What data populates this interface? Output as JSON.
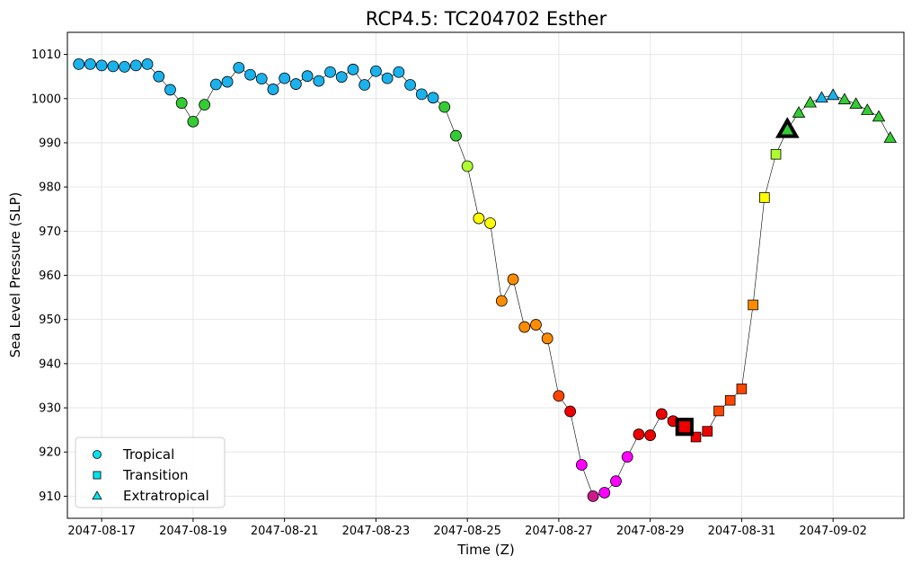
{
  "chart_data": {
    "type": "scatter",
    "title": "RCP4.5: TC204702 Esther",
    "xlabel": "Time (Z)",
    "ylabel": "Sea Level Pressure (SLP)",
    "ylim": [
      905,
      1015
    ],
    "xlim_day": [
      -0.75,
      17.55
    ],
    "yticks": [
      910,
      920,
      930,
      940,
      950,
      960,
      970,
      980,
      990,
      1000,
      1010
    ],
    "xticks": [
      {
        "day": 0,
        "label": "2047-08-17"
      },
      {
        "day": 2,
        "label": "2047-08-19"
      },
      {
        "day": 4,
        "label": "2047-08-21"
      },
      {
        "day": 6,
        "label": "2047-08-23"
      },
      {
        "day": 8,
        "label": "2047-08-25"
      },
      {
        "day": 10,
        "label": "2047-08-27"
      },
      {
        "day": 12,
        "label": "2047-08-29"
      },
      {
        "day": 14,
        "label": "2047-08-31"
      },
      {
        "day": 16,
        "label": "2047-09-02"
      }
    ],
    "grid": true,
    "legend_position": "lower-left",
    "legend": [
      {
        "label": "Tropical",
        "marker": "circle",
        "color": "#00e5ee"
      },
      {
        "label": "Transition",
        "marker": "square",
        "color": "#00e5ee"
      },
      {
        "label": "Extratropical",
        "marker": "triangle",
        "color": "#00e5ee"
      }
    ],
    "points": [
      {
        "day": -0.5,
        "slp": 1007.8,
        "m": "c",
        "color": "#1ab2ec"
      },
      {
        "day": -0.25,
        "slp": 1007.8,
        "m": "c",
        "color": "#1ab2ec"
      },
      {
        "day": 0.0,
        "slp": 1007.5,
        "m": "c",
        "color": "#1ab2ec"
      },
      {
        "day": 0.25,
        "slp": 1007.3,
        "m": "c",
        "color": "#1ab2ec"
      },
      {
        "day": 0.5,
        "slp": 1007.2,
        "m": "c",
        "color": "#1ab2ec"
      },
      {
        "day": 0.75,
        "slp": 1007.5,
        "m": "c",
        "color": "#1ab2ec"
      },
      {
        "day": 1.0,
        "slp": 1007.8,
        "m": "c",
        "color": "#1ab2ec"
      },
      {
        "day": 1.25,
        "slp": 1005.0,
        "m": "c",
        "color": "#1ab2ec"
      },
      {
        "day": 1.5,
        "slp": 1002.0,
        "m": "c",
        "color": "#1ab2ec"
      },
      {
        "day": 1.75,
        "slp": 999.0,
        "m": "c",
        "color": "#33cc33"
      },
      {
        "day": 2.0,
        "slp": 994.8,
        "m": "c",
        "color": "#33cc33"
      },
      {
        "day": 2.25,
        "slp": 998.6,
        "m": "c",
        "color": "#33cc33"
      },
      {
        "day": 2.5,
        "slp": 1003.2,
        "m": "c",
        "color": "#1ab2ec"
      },
      {
        "day": 2.75,
        "slp": 1003.8,
        "m": "c",
        "color": "#1ab2ec"
      },
      {
        "day": 3.0,
        "slp": 1007.0,
        "m": "c",
        "color": "#1ab2ec"
      },
      {
        "day": 3.25,
        "slp": 1005.4,
        "m": "c",
        "color": "#1ab2ec"
      },
      {
        "day": 3.5,
        "slp": 1004.5,
        "m": "c",
        "color": "#1ab2ec"
      },
      {
        "day": 3.75,
        "slp": 1002.1,
        "m": "c",
        "color": "#1ab2ec"
      },
      {
        "day": 4.0,
        "slp": 1004.6,
        "m": "c",
        "color": "#1ab2ec"
      },
      {
        "day": 4.25,
        "slp": 1003.3,
        "m": "c",
        "color": "#1ab2ec"
      },
      {
        "day": 4.5,
        "slp": 1005.1,
        "m": "c",
        "color": "#1ab2ec"
      },
      {
        "day": 4.75,
        "slp": 1004.0,
        "m": "c",
        "color": "#1ab2ec"
      },
      {
        "day": 5.0,
        "slp": 1006.0,
        "m": "c",
        "color": "#1ab2ec"
      },
      {
        "day": 5.25,
        "slp": 1004.9,
        "m": "c",
        "color": "#1ab2ec"
      },
      {
        "day": 5.5,
        "slp": 1006.6,
        "m": "c",
        "color": "#1ab2ec"
      },
      {
        "day": 5.75,
        "slp": 1003.1,
        "m": "c",
        "color": "#1ab2ec"
      },
      {
        "day": 6.0,
        "slp": 1006.2,
        "m": "c",
        "color": "#1ab2ec"
      },
      {
        "day": 6.25,
        "slp": 1004.6,
        "m": "c",
        "color": "#1ab2ec"
      },
      {
        "day": 6.5,
        "slp": 1006.0,
        "m": "c",
        "color": "#1ab2ec"
      },
      {
        "day": 6.75,
        "slp": 1003.1,
        "m": "c",
        "color": "#1ab2ec"
      },
      {
        "day": 7.0,
        "slp": 1001.0,
        "m": "c",
        "color": "#1ab2ec"
      },
      {
        "day": 7.25,
        "slp": 1000.2,
        "m": "c",
        "color": "#1ab2ec"
      },
      {
        "day": 7.5,
        "slp": 998.1,
        "m": "c",
        "color": "#33cc33"
      },
      {
        "day": 7.75,
        "slp": 991.6,
        "m": "c",
        "color": "#33cc33"
      },
      {
        "day": 8.0,
        "slp": 984.7,
        "m": "c",
        "color": "#adff2f"
      },
      {
        "day": 8.25,
        "slp": 972.9,
        "m": "c",
        "color": "#ffff00"
      },
      {
        "day": 8.5,
        "slp": 971.8,
        "m": "c",
        "color": "#ffff00"
      },
      {
        "day": 8.75,
        "slp": 954.2,
        "m": "c",
        "color": "#ff8c00"
      },
      {
        "day": 9.0,
        "slp": 959.1,
        "m": "c",
        "color": "#ff8c00"
      },
      {
        "day": 9.25,
        "slp": 948.3,
        "m": "c",
        "color": "#ff8c00"
      },
      {
        "day": 9.5,
        "slp": 948.8,
        "m": "c",
        "color": "#ff8c00"
      },
      {
        "day": 9.75,
        "slp": 945.7,
        "m": "c",
        "color": "#ff8c00"
      },
      {
        "day": 10.0,
        "slp": 932.7,
        "m": "c",
        "color": "#ff4500"
      },
      {
        "day": 10.25,
        "slp": 929.2,
        "m": "c",
        "color": "#ee0000"
      },
      {
        "day": 10.5,
        "slp": 917.1,
        "m": "c",
        "color": "#ff00ff"
      },
      {
        "day": 10.75,
        "slp": 910.0,
        "m": "c",
        "color": "#cc1a88"
      },
      {
        "day": 11.0,
        "slp": 910.8,
        "m": "c",
        "color": "#ff00ff"
      },
      {
        "day": 11.25,
        "slp": 913.4,
        "m": "c",
        "color": "#ff00ff"
      },
      {
        "day": 11.5,
        "slp": 918.9,
        "m": "c",
        "color": "#ff00ff"
      },
      {
        "day": 11.75,
        "slp": 924.0,
        "m": "c",
        "color": "#ee0000"
      },
      {
        "day": 12.0,
        "slp": 923.8,
        "m": "c",
        "color": "#ee0000"
      },
      {
        "day": 12.25,
        "slp": 928.6,
        "m": "c",
        "color": "#ee0000"
      },
      {
        "day": 12.5,
        "slp": 927.0,
        "m": "c",
        "color": "#ee0000"
      },
      {
        "day": 12.75,
        "slp": 925.7,
        "m": "s",
        "color": "#ee0000"
      },
      {
        "day": 13.0,
        "slp": 923.4,
        "m": "s",
        "color": "#ee0000"
      },
      {
        "day": 13.25,
        "slp": 924.7,
        "m": "s",
        "color": "#ee0000"
      },
      {
        "day": 13.5,
        "slp": 929.3,
        "m": "s",
        "color": "#ff4500"
      },
      {
        "day": 13.75,
        "slp": 931.7,
        "m": "s",
        "color": "#ff4500"
      },
      {
        "day": 14.0,
        "slp": 934.3,
        "m": "s",
        "color": "#ff4500"
      },
      {
        "day": 14.25,
        "slp": 953.3,
        "m": "s",
        "color": "#ff8c00"
      },
      {
        "day": 14.5,
        "slp": 977.6,
        "m": "s",
        "color": "#ffff00"
      },
      {
        "day": 14.75,
        "slp": 987.4,
        "m": "s",
        "color": "#adff2f"
      },
      {
        "day": 15.0,
        "slp": 993.0,
        "m": "t",
        "color": "#33cc33"
      },
      {
        "day": 15.25,
        "slp": 996.8,
        "m": "t",
        "color": "#33cc33"
      },
      {
        "day": 15.5,
        "slp": 999.1,
        "m": "t",
        "color": "#33cc33"
      },
      {
        "day": 15.75,
        "slp": 1000.2,
        "m": "t",
        "color": "#1ab2ec"
      },
      {
        "day": 16.0,
        "slp": 1000.8,
        "m": "t",
        "color": "#1ab2ec"
      },
      {
        "day": 16.25,
        "slp": 999.8,
        "m": "t",
        "color": "#33cc33"
      },
      {
        "day": 16.5,
        "slp": 998.8,
        "m": "t",
        "color": "#33cc33"
      },
      {
        "day": 16.75,
        "slp": 997.4,
        "m": "t",
        "color": "#33cc33"
      },
      {
        "day": 17.0,
        "slp": 995.9,
        "m": "t",
        "color": "#33cc33"
      },
      {
        "day": 17.25,
        "slp": 991.1,
        "m": "t",
        "color": "#33cc33"
      }
    ],
    "highlights": [
      {
        "day": 12.75,
        "slp": 925.7,
        "m": "s",
        "color": "#ee0000"
      },
      {
        "day": 15.0,
        "slp": 993.0,
        "m": "t",
        "color": "#33cc33"
      }
    ]
  }
}
